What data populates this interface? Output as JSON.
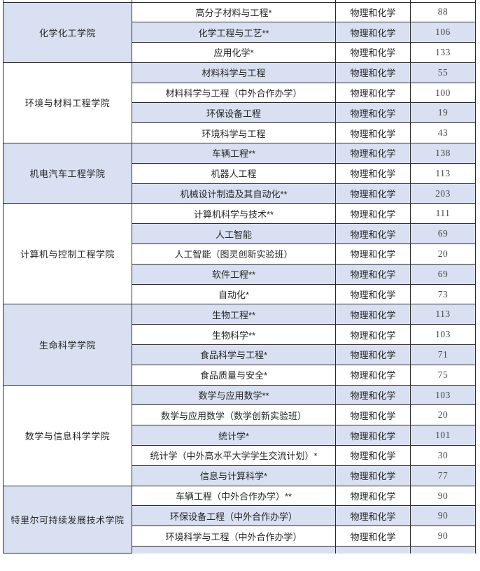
{
  "table": {
    "subject_requirement": "物理和化学",
    "colors": {
      "row_shade": "#d8e0f1",
      "border": "#2b2b2b",
      "text": "#262626",
      "number_text": "#4a4a4a"
    },
    "colleges": [
      {
        "name": "化学化工学院",
        "majors": [
          {
            "major": "高分子材料与工程*",
            "subjects": "物理和化学",
            "count": "88"
          },
          {
            "major": "化学工程与工艺**",
            "subjects": "物理和化学",
            "count": "106"
          },
          {
            "major": "应用化学*",
            "subjects": "物理和化学",
            "count": "133"
          }
        ]
      },
      {
        "name": "环境与材料工程学院",
        "majors": [
          {
            "major": "材料科学与工程",
            "subjects": "物理和化学",
            "count": "55"
          },
          {
            "major": "材料科学与工程（中外合作办学）",
            "subjects": "物理和化学",
            "count": "100"
          },
          {
            "major": "环保设备工程",
            "subjects": "物理和化学",
            "count": "19"
          },
          {
            "major": "环境科学与工程",
            "subjects": "物理和化学",
            "count": "43"
          }
        ]
      },
      {
        "name": "机电汽车工程学院",
        "majors": [
          {
            "major": "车辆工程**",
            "subjects": "物理和化学",
            "count": "138"
          },
          {
            "major": "机器人工程",
            "subjects": "物理和化学",
            "count": "113"
          },
          {
            "major": "机械设计制造及其自动化**",
            "subjects": "物理和化学",
            "count": "203"
          }
        ]
      },
      {
        "name": "计算机与控制工程学院",
        "majors": [
          {
            "major": "计算机科学与技术**",
            "subjects": "物理和化学",
            "count": "111"
          },
          {
            "major": "人工智能",
            "subjects": "物理和化学",
            "count": "69"
          },
          {
            "major": "人工智能（图灵创新实验班）",
            "subjects": "物理和化学",
            "count": "20"
          },
          {
            "major": "软件工程**",
            "subjects": "物理和化学",
            "count": "69"
          },
          {
            "major": "自动化*",
            "subjects": "物理和化学",
            "count": "73"
          }
        ]
      },
      {
        "name": "生命科学学院",
        "majors": [
          {
            "major": "生物工程**",
            "subjects": "物理和化学",
            "count": "113"
          },
          {
            "major": "生物科学**",
            "subjects": "物理和化学",
            "count": "103"
          },
          {
            "major": "食品科学与工程*",
            "subjects": "物理和化学",
            "count": "71"
          },
          {
            "major": "食品质量与安全*",
            "subjects": "物理和化学",
            "count": "75"
          }
        ]
      },
      {
        "name": "数学与信息科学学院",
        "majors": [
          {
            "major": "数学与应用数学**",
            "subjects": "物理和化学",
            "count": "103"
          },
          {
            "major": "数学与应用数学（数学创新实验班）",
            "subjects": "物理和化学",
            "count": "20"
          },
          {
            "major": "统计学*",
            "subjects": "物理和化学",
            "count": "101"
          },
          {
            "major": "统计学（中外高水平大学学生交流计划）*",
            "subjects": "物理和化学",
            "count": "30"
          },
          {
            "major": "信息与计算科学*",
            "subjects": "物理和化学",
            "count": "77"
          }
        ]
      },
      {
        "name": "特里尔可持续发展技术学院",
        "majors": [
          {
            "major": "车辆工程（中外合作办学）**",
            "subjects": "物理和化学",
            "count": "90"
          },
          {
            "major": "环保设备工程（中外合作办学）",
            "subjects": "物理和化学",
            "count": "90"
          },
          {
            "major": "环境科学与工程（中外合作办学）",
            "subjects": "物理和化学",
            "count": "90"
          }
        ]
      }
    ]
  }
}
